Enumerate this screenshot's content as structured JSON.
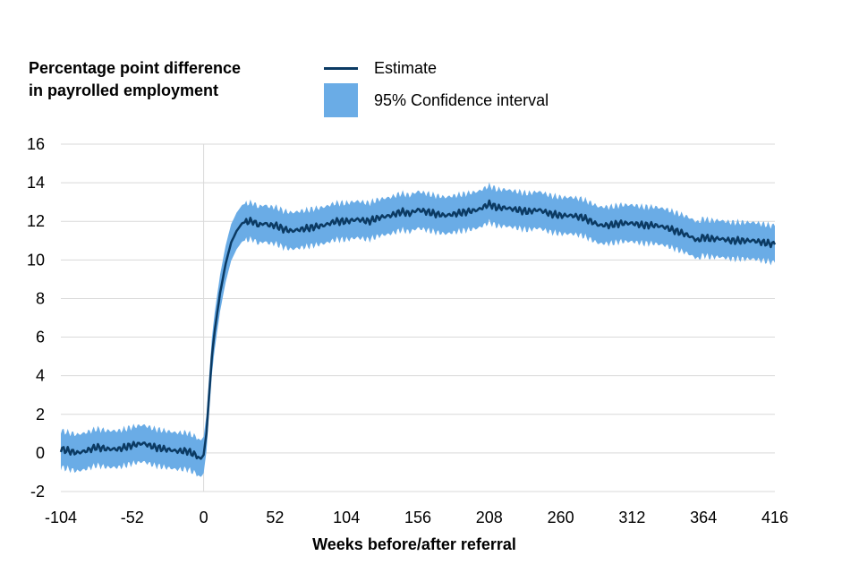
{
  "chart_data": {
    "type": "line",
    "title": "",
    "ylabel": "Percentage point difference in payrolled employment",
    "ylabel_lines": [
      "Percentage point difference",
      "in payrolled employment"
    ],
    "xlabel": "Weeks before/after referral",
    "xlim": [
      -104,
      416
    ],
    "ylim": [
      -2,
      16
    ],
    "xticks": [
      -104,
      -52,
      0,
      52,
      104,
      156,
      208,
      260,
      312,
      364,
      416
    ],
    "yticks": [
      -2,
      0,
      2,
      4,
      6,
      8,
      10,
      12,
      14,
      16
    ],
    "grid": "horizontal",
    "legend": {
      "position": "top",
      "entries": [
        "Estimate",
        "95% Confidence interval"
      ]
    },
    "series": [
      {
        "name": "Estimate",
        "color": "#0b3a63",
        "x": [
          -104,
          -98,
          -92,
          -86,
          -78,
          -70,
          -62,
          -52,
          -44,
          -36,
          -28,
          -20,
          -12,
          -6,
          -2,
          0,
          2,
          4,
          6,
          8,
          12,
          16,
          20,
          24,
          28,
          32,
          36,
          40,
          44,
          48,
          52,
          58,
          64,
          72,
          80,
          88,
          96,
          104,
          112,
          120,
          128,
          136,
          144,
          150,
          156,
          162,
          168,
          176,
          184,
          192,
          200,
          208,
          214,
          220,
          228,
          236,
          244,
          252,
          260,
          268,
          276,
          282,
          288,
          296,
          304,
          312,
          320,
          328,
          336,
          344,
          352,
          360,
          364,
          368,
          376,
          384,
          392,
          400,
          408,
          416
        ],
        "values": [
          0.2,
          0.1,
          0.0,
          0.1,
          0.3,
          0.2,
          0.2,
          0.4,
          0.5,
          0.3,
          0.2,
          0.1,
          0.1,
          -0.1,
          -0.3,
          -0.1,
          1.0,
          3.0,
          5.0,
          6.3,
          8.3,
          9.8,
          10.9,
          11.5,
          11.9,
          12.0,
          12.0,
          11.8,
          11.9,
          11.8,
          11.8,
          11.6,
          11.5,
          11.6,
          11.7,
          11.8,
          12.0,
          12.0,
          12.1,
          12.0,
          12.2,
          12.3,
          12.5,
          12.4,
          12.6,
          12.5,
          12.4,
          12.3,
          12.4,
          12.5,
          12.6,
          12.9,
          12.7,
          12.7,
          12.6,
          12.5,
          12.6,
          12.4,
          12.3,
          12.3,
          12.2,
          12.0,
          11.8,
          11.8,
          11.9,
          11.9,
          11.8,
          11.8,
          11.7,
          11.5,
          11.3,
          11.0,
          11.2,
          11.1,
          11.1,
          11.0,
          11.0,
          11.0,
          10.9,
          10.8
        ]
      },
      {
        "name": "95% Confidence interval",
        "color": "#6aace6",
        "half_width_pp": 0.95
      }
    ]
  }
}
